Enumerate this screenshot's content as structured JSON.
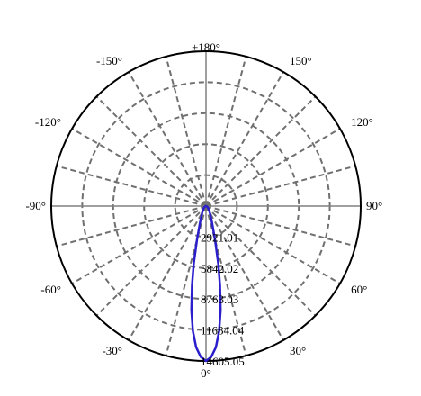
{
  "chart_data": {
    "type": "polar",
    "angle_labels": [
      {
        "deg": 180,
        "text": "±180°"
      },
      {
        "deg": 150,
        "text": "150°"
      },
      {
        "deg": 120,
        "text": "120°"
      },
      {
        "deg": 90,
        "text": "90°"
      },
      {
        "deg": 60,
        "text": "60°"
      },
      {
        "deg": 30,
        "text": "30°"
      },
      {
        "deg": 0,
        "text": "0°"
      },
      {
        "deg": -30,
        "text": "-30°"
      },
      {
        "deg": -60,
        "text": "-60°"
      },
      {
        "deg": -90,
        "text": "-90°"
      },
      {
        "deg": -120,
        "text": "-120°"
      },
      {
        "deg": -150,
        "text": "-150°"
      }
    ],
    "radial_ticks": [
      2921.01,
      5842.02,
      8763.03,
      11684.04,
      14605.05
    ],
    "radial_tick_labels": [
      "2921.01",
      "5842.02",
      "8763.03",
      "11684.04",
      "14605.05"
    ],
    "r_max": 14605.05,
    "spoke_step_deg": 15,
    "grid": true,
    "series": [
      {
        "color": "#2b1fcc",
        "points": [
          {
            "angle": 0,
            "value": 14605.05
          },
          {
            "angle": 2,
            "value": 14230
          },
          {
            "angle": 4,
            "value": 13350
          },
          {
            "angle": 6,
            "value": 11850
          },
          {
            "angle": 8,
            "value": 9900
          },
          {
            "angle": 10,
            "value": 7600
          },
          {
            "angle": 12,
            "value": 5600
          },
          {
            "angle": 15,
            "value": 3300
          },
          {
            "angle": 20,
            "value": 1650
          },
          {
            "angle": 30,
            "value": 720
          },
          {
            "angle": 45,
            "value": 330
          },
          {
            "angle": 60,
            "value": 150
          },
          {
            "angle": 75,
            "value": 60
          },
          {
            "angle": 90,
            "value": 0
          }
        ]
      }
    ]
  }
}
